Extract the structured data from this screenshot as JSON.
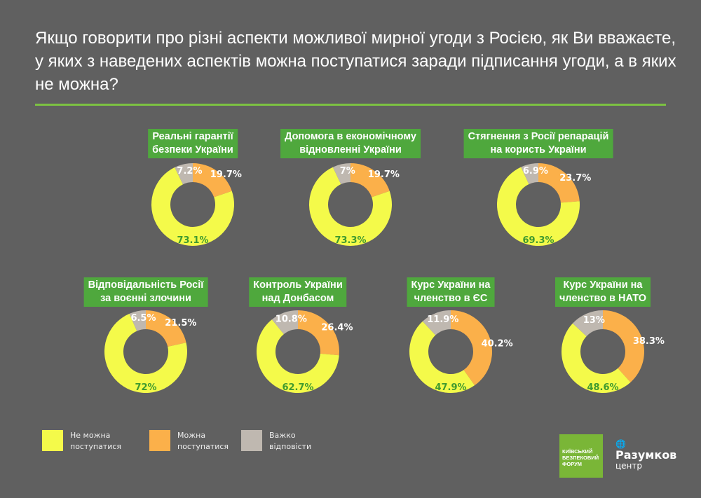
{
  "title": "Якщо говорити про різні аспекти можливої мирної угоди з Росією, як Ви вважаєте, у яких з наведених аспектів можна поступатися заради підписання угоди, а в яких не можна?",
  "colors": {
    "ne_mozhna": "#f4fa4a",
    "mozhna": "#fbb04a",
    "vazhko": "#bfb8b0",
    "label_bg": "#4fa83d",
    "background": "#606060"
  },
  "legend": [
    "Не можна поступатися",
    "Можна поступатися",
    "Важко відповісти"
  ],
  "logos": {
    "kbf": "КИЇВСЬКИЙ БЕЗПЕКОВИЙ ФОРУМ",
    "razumkov": "Разумков",
    "razumkov_sub": "центр"
  },
  "chart_data": {
    "type": "pie",
    "variant": "donut",
    "series_names": [
      "Не можна поступатися",
      "Можна поступатися",
      "Важко відповісти"
    ],
    "charts": [
      {
        "title": "Реальні гарантії безпеки України",
        "values": [
          73.1,
          19.7,
          7.2
        ],
        "labels": [
          "73.1%",
          "19.7%",
          "7.2%"
        ]
      },
      {
        "title": "Допомога в економічному відновленні України",
        "values": [
          73.3,
          19.7,
          7
        ],
        "labels": [
          "73.3%",
          "19.7%",
          "7%"
        ]
      },
      {
        "title": "Стягнення з Росії репарацій на користь України",
        "values": [
          69.3,
          23.7,
          6.9
        ],
        "labels": [
          "69.3%",
          "23.7%",
          "6.9%"
        ]
      },
      {
        "title": "Відповідальність Росії за воєнні злочини",
        "values": [
          72,
          21.5,
          6.5
        ],
        "labels": [
          "72%",
          "21.5%",
          "6.5%"
        ]
      },
      {
        "title": "Контроль України над Донбасом",
        "values": [
          62.7,
          26.4,
          10.8
        ],
        "labels": [
          "62.7%",
          "26.4%",
          "10.8%"
        ]
      },
      {
        "title": "Курс України на членство в ЄС",
        "values": [
          47.9,
          40.2,
          11.9
        ],
        "labels": [
          "47.9%",
          "40.2%",
          "11.9%"
        ]
      },
      {
        "title": "Курс України на членство в НАТО",
        "values": [
          48.6,
          38.3,
          13
        ],
        "labels": [
          "48.6%",
          "38.3%",
          "13%"
        ]
      }
    ]
  }
}
